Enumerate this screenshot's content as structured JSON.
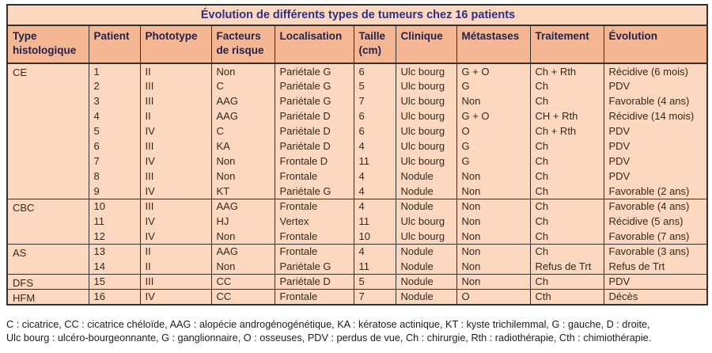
{
  "colors": {
    "border": "#33302b",
    "title_bg": "#fcd8c0",
    "title_text": "#30307e",
    "header_bg": "#f5b694",
    "header_text": "#23224e",
    "row_bg": "#fcd8c0",
    "cell_text": "#35291c",
    "footnote_text": "#1c1c1c"
  },
  "table": {
    "title": "Évolution de différents types de tumeurs chez 16 patients",
    "columns": [
      {
        "id": "type-histologique",
        "label": "Type histologique"
      },
      {
        "id": "patient",
        "label": "Patient"
      },
      {
        "id": "phototype",
        "label": "Phototype"
      },
      {
        "id": "facteurs-de-risque",
        "label": "Facteurs de risque"
      },
      {
        "id": "localisation",
        "label": "Localisation"
      },
      {
        "id": "taille-cm",
        "label": "Taille (cm)"
      },
      {
        "id": "clinique",
        "label": "Clinique"
      },
      {
        "id": "metastases",
        "label": "Métastases"
      },
      {
        "id": "traitement",
        "label": "Traitement"
      },
      {
        "id": "evolution",
        "label": "Évolution"
      }
    ],
    "rows": [
      {
        "group": "CE",
        "group_span": 9,
        "patient": "1",
        "phototype": "II",
        "facteurs": "Non",
        "localisation": "Pariétale G",
        "taille": "6",
        "clinique": "Ulc bourg",
        "metastases": "G + O",
        "traitement": "Ch + Rth",
        "evolution": "Récidive (6 mois)"
      },
      {
        "patient": "2",
        "phototype": "III",
        "facteurs": "C",
        "localisation": "Pariétale G",
        "taille": "5",
        "clinique": "Ulc bourg",
        "metastases": "G",
        "traitement": "Ch",
        "evolution": "PDV"
      },
      {
        "patient": "3",
        "phototype": "III",
        "facteurs": "AAG",
        "localisation": "Pariétale G",
        "taille": "7",
        "clinique": "Ulc bourg",
        "metastases": "Non",
        "traitement": "Ch",
        "evolution": "Favorable (4 ans)"
      },
      {
        "patient": "4",
        "phototype": "II",
        "facteurs": "AAG",
        "localisation": "Pariétale D",
        "taille": "6",
        "clinique": "Ulc bourg",
        "metastases": "G + O",
        "traitement": "CH + Rth",
        "evolution": "Récidive (14 mois)"
      },
      {
        "patient": "5",
        "phototype": "IV",
        "facteurs": "C",
        "localisation": "Pariétale D",
        "taille": "6",
        "clinique": "Ulc bourg",
        "metastases": "O",
        "traitement": "Ch + Rth",
        "evolution": "PDV"
      },
      {
        "patient": "6",
        "phototype": "III",
        "facteurs": "KA",
        "localisation": "Pariétale D",
        "taille": "4",
        "clinique": "Ulc bourg",
        "metastases": "G",
        "traitement": "Ch",
        "evolution": "PDV"
      },
      {
        "patient": "7",
        "phototype": "IV",
        "facteurs": "Non",
        "localisation": "Frontale D",
        "taille": "11",
        "clinique": "Ulc bourg",
        "metastases": "G",
        "traitement": "Ch",
        "evolution": "PDV"
      },
      {
        "patient": "8",
        "phototype": "III",
        "facteurs": "Non",
        "localisation": "Frontale",
        "taille": "4",
        "clinique": "Nodule",
        "metastases": "Non",
        "traitement": "Ch",
        "evolution": "PDV"
      },
      {
        "patient": "9",
        "phototype": "IV",
        "facteurs": "KT",
        "localisation": "Pariétale G",
        "taille": "4",
        "clinique": "Nodule",
        "metastases": "Non",
        "traitement": "Ch",
        "evolution": "Favorable (2 ans)"
      },
      {
        "group": "CBC",
        "group_span": 3,
        "patient": "10",
        "phototype": "III",
        "facteurs": "AAG",
        "localisation": "Frontale",
        "taille": "4",
        "clinique": "Nodule",
        "metastases": "Non",
        "traitement": "Ch",
        "evolution": "Favorable (4 ans)"
      },
      {
        "patient": "11",
        "phototype": "IV",
        "facteurs": "HJ",
        "localisation": "Vertex",
        "taille": "11",
        "clinique": "Ulc bourg",
        "metastases": "Non",
        "traitement": "Ch",
        "evolution": "Récidive (5 ans)"
      },
      {
        "patient": "12",
        "phototype": "IV",
        "facteurs": "Non",
        "localisation": "Frontale",
        "taille": "10",
        "clinique": "Ulc bourg",
        "metastases": "Non",
        "traitement": "Ch",
        "evolution": "Favorable (7 ans)"
      },
      {
        "group": "AS",
        "group_span": 2,
        "patient": "13",
        "phototype": "II",
        "facteurs": "AAG",
        "localisation": "Frontale",
        "taille": "4",
        "clinique": "Nodule",
        "metastases": "Non",
        "traitement": "Ch",
        "evolution": "Favorable (3 ans)"
      },
      {
        "patient": "14",
        "phototype": "II",
        "facteurs": "Non",
        "localisation": "Pariétale G",
        "taille": "11",
        "clinique": "Nodule",
        "metastases": "Non",
        "traitement": "Refus de Trt",
        "evolution": "Refus de Trt"
      },
      {
        "group": "DFS",
        "group_span": 1,
        "patient": "15",
        "phototype": "III",
        "facteurs": "CC",
        "localisation": "Pariétale D",
        "taille": "5",
        "clinique": "Nodule",
        "metastases": "Non",
        "traitement": "Ch",
        "evolution": "PDV"
      },
      {
        "group": "HFM",
        "group_span": 1,
        "patient": "16",
        "phototype": "IV",
        "facteurs": "CC",
        "localisation": "Frontale",
        "taille": "7",
        "clinique": "Nodule",
        "metastases": "O",
        "traitement": "Cth",
        "evolution": "Décès"
      }
    ]
  },
  "footnote": {
    "line1": "C : cicatrice, CC : cicatrice chéloïde, AAG : alopécie androgénogénétique, KA : kératose actinique, KT : kyste trichilemmal, G : gauche, D : droite,",
    "line2": "Ulc bourg : ulcéro-bourgeonnante, G : ganglionnaire, O : osseuses, PDV : perdus de vue, Ch : chirurgie, Rth : radiothérapie, Cth : chimiothérapie."
  }
}
